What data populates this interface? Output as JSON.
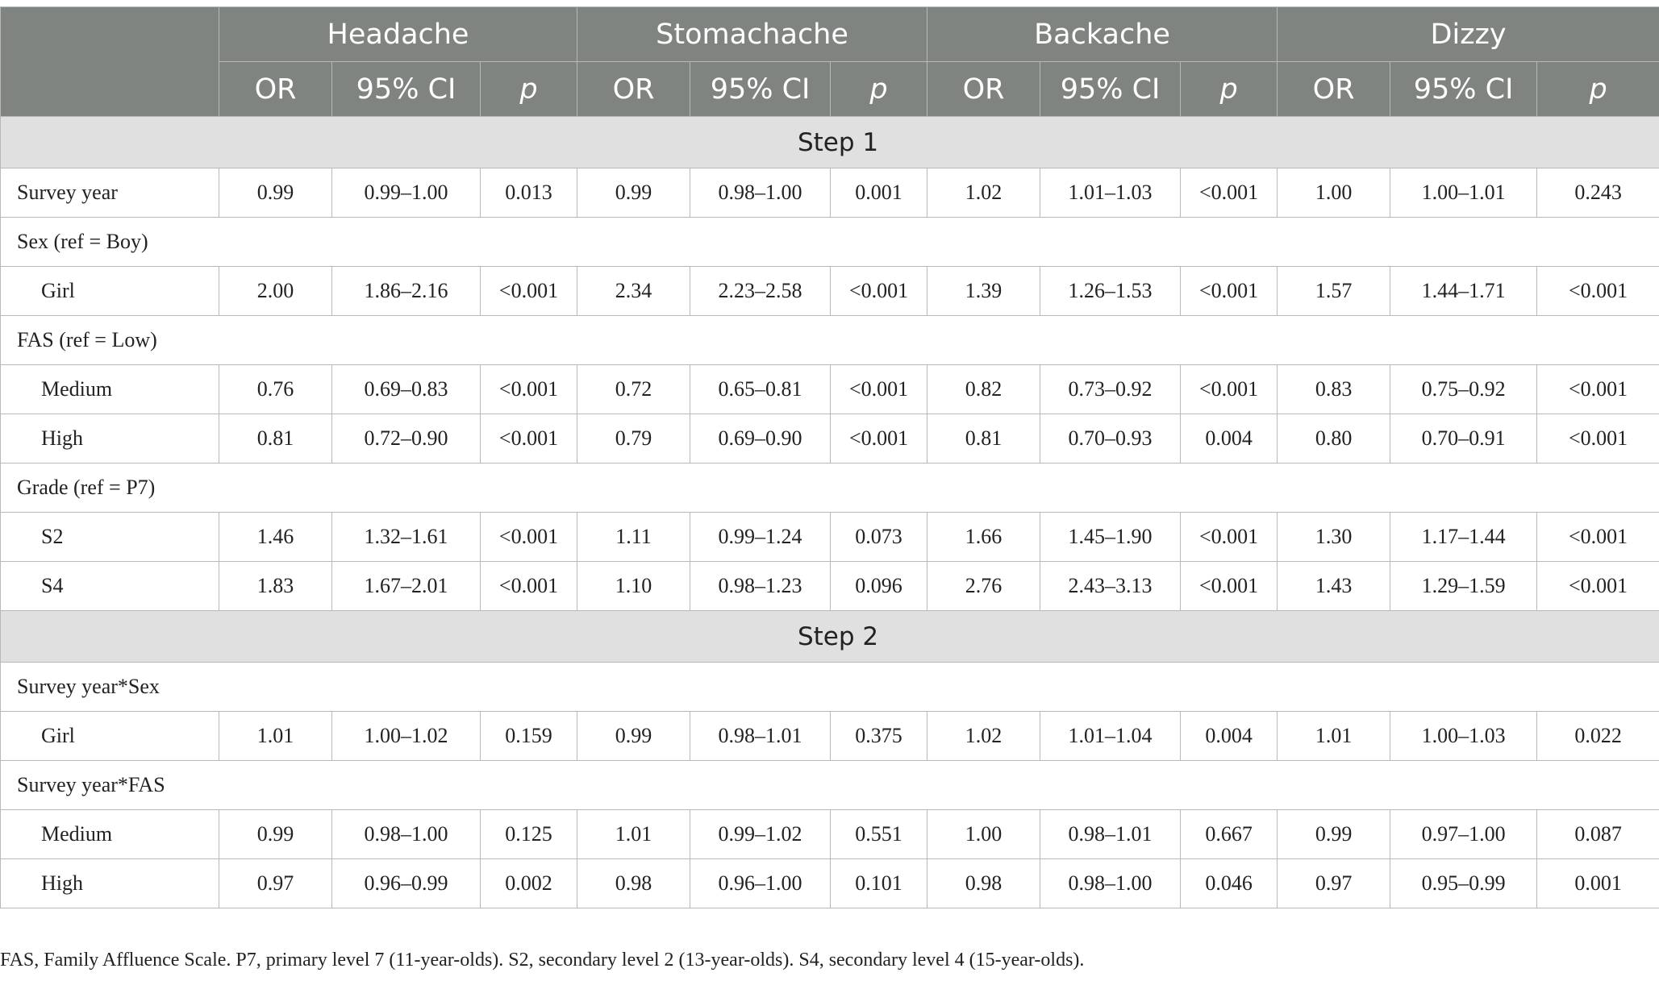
{
  "header": {
    "groups": [
      "Headache",
      "Stomachache",
      "Backache",
      "Dizzy"
    ],
    "subcols": [
      "OR",
      "95% CI",
      "p"
    ]
  },
  "step1": {
    "label": "Step 1",
    "survey_year": {
      "label": "Survey year",
      "cells": [
        "0.99",
        "0.99–1.00",
        "0.013",
        "0.99",
        "0.98–1.00",
        "0.001",
        "1.02",
        "1.01–1.03",
        "<0.001",
        "1.00",
        "1.00–1.01",
        "0.243"
      ]
    },
    "sex_group": "Sex (ref = Boy)",
    "girl": {
      "label": "Girl",
      "cells": [
        "2.00",
        "1.86–2.16",
        "<0.001",
        "2.34",
        "2.23–2.58",
        "<0.001",
        "1.39",
        "1.26–1.53",
        "<0.001",
        "1.57",
        "1.44–1.71",
        "<0.001"
      ]
    },
    "fas_group": "FAS (ref = Low)",
    "medium": {
      "label": "Medium",
      "cells": [
        "0.76",
        "0.69–0.83",
        "<0.001",
        "0.72",
        "0.65–0.81",
        "<0.001",
        "0.82",
        "0.73–0.92",
        "<0.001",
        "0.83",
        "0.75–0.92",
        "<0.001"
      ]
    },
    "high": {
      "label": "High",
      "cells": [
        "0.81",
        "0.72–0.90",
        "<0.001",
        "0.79",
        "0.69–0.90",
        "<0.001",
        "0.81",
        "0.70–0.93",
        "0.004",
        "0.80",
        "0.70–0.91",
        "<0.001"
      ]
    },
    "grade_group": "Grade (ref = P7)",
    "s2": {
      "label": "S2",
      "cells": [
        "1.46",
        "1.32–1.61",
        "<0.001",
        "1.11",
        "0.99–1.24",
        "0.073",
        "1.66",
        "1.45–1.90",
        "<0.001",
        "1.30",
        "1.17–1.44",
        "<0.001"
      ]
    },
    "s4": {
      "label": "S4",
      "cells": [
        "1.83",
        "1.67–2.01",
        "<0.001",
        "1.10",
        "0.98–1.23",
        "0.096",
        "2.76",
        "2.43–3.13",
        "<0.001",
        "1.43",
        "1.29–1.59",
        "<0.001"
      ]
    }
  },
  "step2": {
    "label": "Step 2",
    "sex_group": "Survey year*Sex",
    "girl": {
      "label": "Girl",
      "cells": [
        "1.01",
        "1.00–1.02",
        "0.159",
        "0.99",
        "0.98–1.01",
        "0.375",
        "1.02",
        "1.01–1.04",
        "0.004",
        "1.01",
        "1.00–1.03",
        "0.022"
      ]
    },
    "fas_group": "Survey year*FAS",
    "medium": {
      "label": "Medium",
      "cells": [
        "0.99",
        "0.98–1.00",
        "0.125",
        "1.01",
        "0.99–1.02",
        "0.551",
        "1.00",
        "0.98–1.01",
        "0.667",
        "0.99",
        "0.97–1.00",
        "0.087"
      ]
    },
    "high": {
      "label": "High",
      "cells": [
        "0.97",
        "0.96–0.99",
        "0.002",
        "0.98",
        "0.96–1.00",
        "0.101",
        "0.98",
        "0.98–1.00",
        "0.046",
        "0.97",
        "0.95–0.99",
        "0.001"
      ]
    }
  },
  "footnote": "FAS, Family Affluence Scale. P7, primary level 7 (11-year-olds). S2, secondary level 2 (13-year-olds). S4, secondary level 4 (15-year-olds)."
}
